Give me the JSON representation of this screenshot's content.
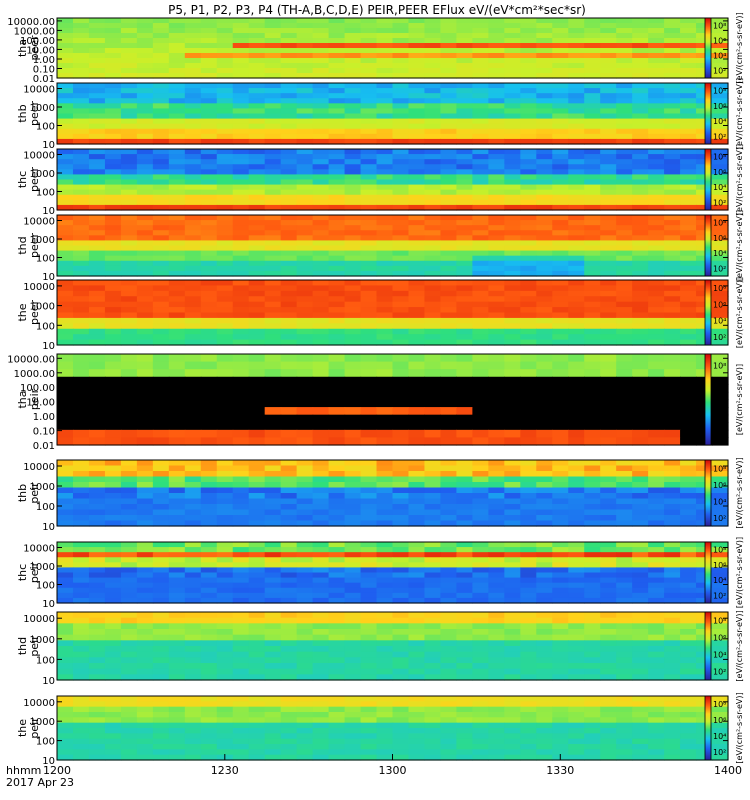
{
  "chart_data": {
    "type": "heatmap",
    "title": "P5, P1, P2, P3, P4 (TH-A,B,C,D,E) PEIR,PEER EFlux eV/(eV*cm²*sec*sr)",
    "x_ticks": [
      "1200",
      "1230",
      "1300",
      "1330",
      "1400"
    ],
    "x_range": [
      "1200",
      "1400"
    ],
    "x_label_lines": [
      "hhmm",
      "2017 Apr 23"
    ],
    "colorbar_unit": "[eV/(cm²-s-sr-eV)]",
    "colorbar_ticks": [
      "10²",
      "10⁴",
      "10⁶",
      "10⁸"
    ],
    "panels": [
      {
        "probe": "tha",
        "product": "peer",
        "y_ticks": [
          "10000.00",
          "1000.00",
          "100.00",
          "10.00",
          "1.00",
          "0.10",
          "0.01"
        ],
        "y_log_range": [
          -2,
          4.3
        ]
      },
      {
        "probe": "thb",
        "product": "peer",
        "y_ticks": [
          "10000",
          "1000",
          "100",
          "10"
        ],
        "y_log_range": [
          1,
          4.3
        ]
      },
      {
        "probe": "thc",
        "product": "peer",
        "y_ticks": [
          "10000",
          "1000",
          "100",
          "10"
        ],
        "y_log_range": [
          1,
          4.3
        ]
      },
      {
        "probe": "thd",
        "product": "peer",
        "y_ticks": [
          "10000",
          "1000",
          "100",
          "10"
        ],
        "y_log_range": [
          1,
          4.3
        ]
      },
      {
        "probe": "the",
        "product": "peer",
        "y_ticks": [
          "10000",
          "1000",
          "100",
          "10"
        ],
        "y_log_range": [
          1,
          4.3
        ]
      },
      {
        "probe": "tha",
        "product": "peir",
        "y_ticks": [
          "10000.00",
          "1000.00",
          "100.00",
          "10.00",
          "1.00",
          "0.10",
          "0.01"
        ],
        "y_log_range": [
          -2,
          4.3
        ]
      },
      {
        "probe": "thb",
        "product": "peir",
        "y_ticks": [
          "10000",
          "1000",
          "100",
          "10"
        ],
        "y_log_range": [
          1,
          4.3
        ]
      },
      {
        "probe": "thc",
        "product": "peir",
        "y_ticks": [
          "10000",
          "1000",
          "100",
          "10"
        ],
        "y_log_range": [
          1,
          4.3
        ]
      },
      {
        "probe": "thd",
        "product": "peir",
        "y_ticks": [
          "10000",
          "1000",
          "100",
          "10"
        ],
        "y_log_range": [
          1,
          4.3
        ]
      },
      {
        "probe": "the",
        "product": "peir",
        "y_ticks": [
          "10000",
          "1000",
          "100",
          "10"
        ],
        "y_log_range": [
          1,
          4.3
        ]
      }
    ]
  }
}
